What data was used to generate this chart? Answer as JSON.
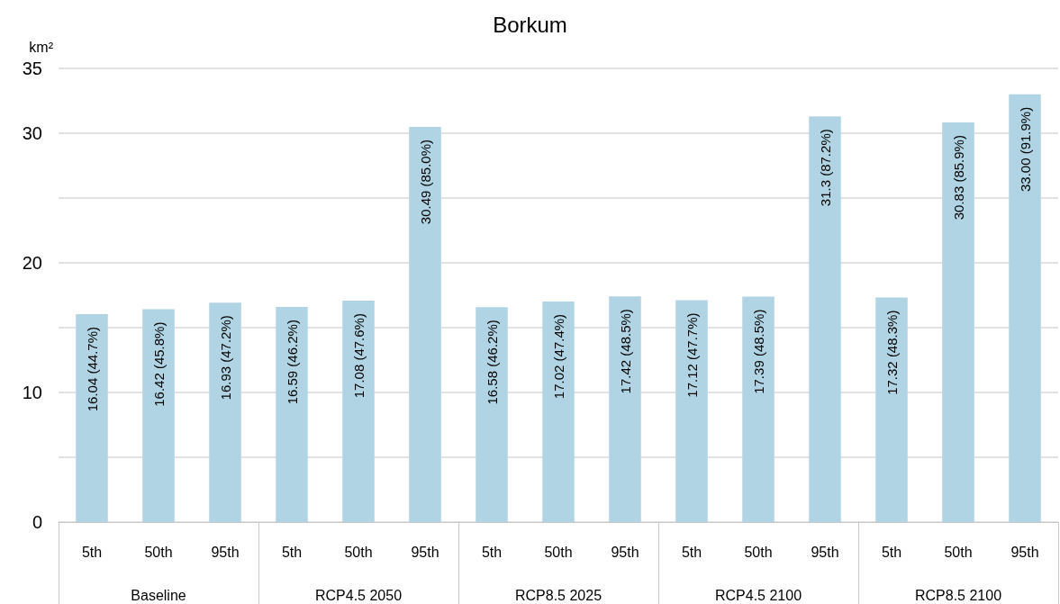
{
  "chart_data": {
    "type": "bar",
    "title": "Borkum",
    "ylabel": "km²",
    "categories": [
      "5th",
      "50th",
      "95th",
      "5th",
      "50th",
      "95th",
      "5th",
      "50th",
      "95th",
      "5th",
      "50th",
      "95th",
      "5th",
      "50th",
      "95th"
    ],
    "annotations": [
      "Baseline",
      "RCP4.5 2050",
      "RCP8.5 2025",
      "RCP4.5 2100",
      "RCP8.5 2100"
    ],
    "values": [
      16.04,
      16.42,
      16.93,
      16.59,
      17.08,
      30.49,
      16.58,
      17.02,
      17.42,
      17.12,
      17.39,
      31.3,
      17.32,
      30.83,
      33.0
    ],
    "value_labels": [
      "16.04 (44.7%)",
      "16.42 (45.8%)",
      "16.93 (47.2%)",
      "16.59 (46.2%)",
      "17.08 (47.6%)",
      "30.49 (85.0%)",
      "16.58 (46.2%)",
      "17.02 (47.4%)",
      "17.42 (48.5%)",
      "17.12 (47.7%)",
      "17.39 (48.5%)",
      "31.3 (87.2%)",
      "17.32 (48.3%)",
      "30.83 (85.9%)",
      "33.00 (91.9%)"
    ],
    "color": "#b0d4e3",
    "ylim": [
      0,
      35
    ],
    "yticks": [
      0,
      {
        "value": 5,
        "label": null
      },
      10,
      {
        "value": 15,
        "label": null
      },
      20,
      {
        "value": 25,
        "label": null
      },
      30,
      35
    ],
    "grid": "y"
  }
}
